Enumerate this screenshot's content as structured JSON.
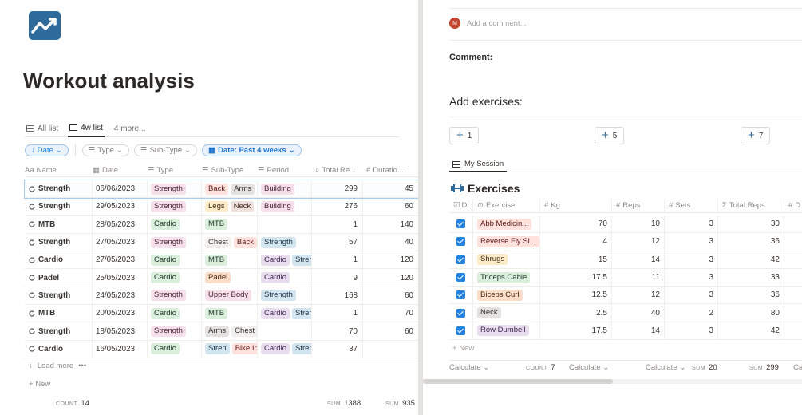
{
  "page": {
    "title": "Workout analysis"
  },
  "views": [
    {
      "label": "All list"
    },
    {
      "label": "4w list"
    },
    {
      "label": "4 more..."
    }
  ],
  "filters": {
    "date_sort": "Date",
    "type": "Type",
    "subtype": "Sub-Type",
    "date_filter": "Date: Past 4 weeks"
  },
  "table": {
    "columns": [
      "Name",
      "Date",
      "Type",
      "Sub-Type",
      "Period",
      "Total Re...",
      "Duratio..."
    ],
    "column_prefixes": [
      "Aa",
      "",
      "",
      "",
      "",
      "",
      "#"
    ],
    "rows": [
      {
        "name": "Strength",
        "date": "06/06/2023",
        "type": {
          "label": "Strength",
          "color": "pink"
        },
        "subtype": [
          {
            "label": "Back",
            "color": "red"
          },
          {
            "label": "Arms",
            "color": "gray"
          }
        ],
        "period": [
          {
            "label": "Building",
            "color": "pink"
          }
        ],
        "total": "299",
        "duration": "45"
      },
      {
        "name": "Strength",
        "date": "29/05/2023",
        "type": {
          "label": "Strength",
          "color": "pink"
        },
        "subtype": [
          {
            "label": "Legs",
            "color": "yellow"
          },
          {
            "label": "Neck",
            "color": "brown"
          }
        ],
        "period": [
          {
            "label": "Building",
            "color": "pink"
          }
        ],
        "total": "276",
        "duration": "60"
      },
      {
        "name": "MTB",
        "date": "28/05/2023",
        "type": {
          "label": "Cardio",
          "color": "green"
        },
        "subtype": [
          {
            "label": "MTB",
            "color": "green"
          }
        ],
        "period": [],
        "total": "1",
        "duration": "140"
      },
      {
        "name": "Strength",
        "date": "27/05/2023",
        "type": {
          "label": "Strength",
          "color": "pink"
        },
        "subtype": [
          {
            "label": "Chest",
            "color": "plain"
          },
          {
            "label": "Back",
            "color": "red"
          }
        ],
        "period": [
          {
            "label": "Strength",
            "color": "blue2"
          }
        ],
        "total": "57",
        "duration": "40"
      },
      {
        "name": "Cardio",
        "date": "27/05/2023",
        "type": {
          "label": "Cardio",
          "color": "green"
        },
        "subtype": [
          {
            "label": "MTB",
            "color": "green"
          }
        ],
        "period": [
          {
            "label": "Cardio",
            "color": "purple"
          },
          {
            "label": "Stren",
            "color": "blue2"
          }
        ],
        "total": "1",
        "duration": "120"
      },
      {
        "name": "Padel",
        "date": "25/05/2023",
        "type": {
          "label": "Cardio",
          "color": "green"
        },
        "subtype": [
          {
            "label": "Padel",
            "color": "orange"
          }
        ],
        "period": [
          {
            "label": "Cardio",
            "color": "purple"
          }
        ],
        "total": "9",
        "duration": "120"
      },
      {
        "name": "Strength",
        "date": "24/05/2023",
        "type": {
          "label": "Strength",
          "color": "pink"
        },
        "subtype": [
          {
            "label": "Upper Body",
            "color": "pink"
          }
        ],
        "period": [
          {
            "label": "Strength",
            "color": "blue2"
          }
        ],
        "total": "168",
        "duration": "60"
      },
      {
        "name": "MTB",
        "date": "20/05/2023",
        "type": {
          "label": "Cardio",
          "color": "green"
        },
        "subtype": [
          {
            "label": "MTB",
            "color": "green"
          }
        ],
        "period": [
          {
            "label": "Cardio",
            "color": "purple"
          },
          {
            "label": "Stren",
            "color": "blue2"
          }
        ],
        "total": "1",
        "duration": "70"
      },
      {
        "name": "Strength",
        "date": "18/05/2023",
        "type": {
          "label": "Strength",
          "color": "pink"
        },
        "subtype": [
          {
            "label": "Arms",
            "color": "gray"
          },
          {
            "label": "Chest",
            "color": "plain"
          }
        ],
        "period": [],
        "total": "70",
        "duration": "60"
      },
      {
        "name": "Cardio",
        "date": "16/05/2023",
        "type": {
          "label": "Cardio",
          "color": "green"
        },
        "subtype": [
          {
            "label": "Stren",
            "color": "blue2"
          },
          {
            "label": "Bike Indoor",
            "color": "red"
          }
        ],
        "period": [
          {
            "label": "Cardio",
            "color": "purple"
          },
          {
            "label": "Stren",
            "color": "blue2"
          }
        ],
        "total": "37",
        "duration": ""
      }
    ],
    "load_more": "Load more",
    "new_label": "New",
    "footer": {
      "count_label": "COUNT",
      "count": "14",
      "sum_label": "SUM",
      "sum_total": "1388",
      "sum_duration": "935"
    }
  },
  "comment": {
    "avatar": "M",
    "placeholder": "Add a comment...",
    "label": "Comment:"
  },
  "add_exercises": {
    "label": "Add exercises:",
    "buttons": [
      "1",
      "5",
      "7"
    ]
  },
  "session": {
    "tab": "My Session",
    "heading": "Exercises",
    "columns": [
      "D...",
      "Exercise",
      "Kg",
      "Reps",
      "Sets",
      "Total Reps",
      "D"
    ],
    "rows": [
      {
        "exercise": "Abb Medicin...",
        "color": "red",
        "kg": "70",
        "reps": "10",
        "sets": "3",
        "total": "30"
      },
      {
        "exercise": "Reverse Fly Si...",
        "color": "red",
        "kg": "4",
        "reps": "12",
        "sets": "3",
        "total": "36"
      },
      {
        "exercise": "Shrugs",
        "color": "yellow",
        "kg": "15",
        "reps": "14",
        "sets": "3",
        "total": "42"
      },
      {
        "exercise": "Triceps Cable",
        "color": "green",
        "kg": "17.5",
        "reps": "11",
        "sets": "3",
        "total": "33"
      },
      {
        "exercise": "Biceps Curl",
        "color": "orange",
        "kg": "12.5",
        "reps": "12",
        "sets": "3",
        "total": "36"
      },
      {
        "exercise": "Neck",
        "color": "gray",
        "kg": "2.5",
        "reps": "40",
        "sets": "2",
        "total": "80"
      },
      {
        "exercise": "Row Dumbell",
        "color": "purple",
        "kg": "17.5",
        "reps": "14",
        "sets": "3",
        "total": "42"
      }
    ],
    "new_label": "New",
    "footer": {
      "calculate": "Calculate",
      "count_label": "COUNT",
      "count": "7",
      "sum_label": "SUM",
      "sum_sets": "20",
      "sum_total": "299",
      "cut": "Ca"
    }
  },
  "colors": {
    "accent": "#2383e2",
    "logo": "#2f6b9a"
  }
}
